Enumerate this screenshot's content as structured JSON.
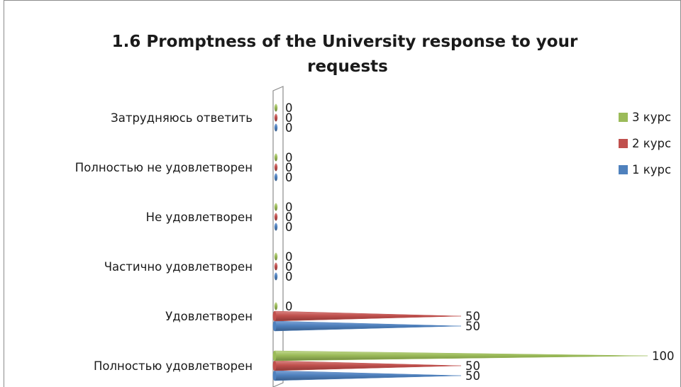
{
  "chart_data": {
    "type": "bar",
    "orientation": "horizontal",
    "style": "3d-cone",
    "title": "1.6 Promptness of the University response to your requests",
    "title_lines": [
      "1.6 Promptness of the University response to your",
      "requests"
    ],
    "categories": [
      "Полностью удовлетворен",
      "Удовлетворен",
      "Частично удовлетворен",
      "Не удовлетворен",
      "Полностью не удовлетворен",
      "Затрудняюсь ответить"
    ],
    "series": [
      {
        "name": "1 курс",
        "color": "#4f81bd",
        "values": [
          50,
          50,
          0,
          0,
          0,
          0
        ]
      },
      {
        "name": "2 курс",
        "color": "#c0504d",
        "values": [
          50,
          50,
          0,
          0,
          0,
          0
        ]
      },
      {
        "name": "3 курс",
        "color": "#9bbb59",
        "values": [
          100,
          0,
          0,
          0,
          0,
          0
        ]
      }
    ],
    "legend_order": [
      "3 курс",
      "2 курс",
      "1 курс"
    ],
    "legend_position": "right",
    "xlim": [
      0,
      100
    ],
    "grid": false,
    "data_labels": true
  }
}
